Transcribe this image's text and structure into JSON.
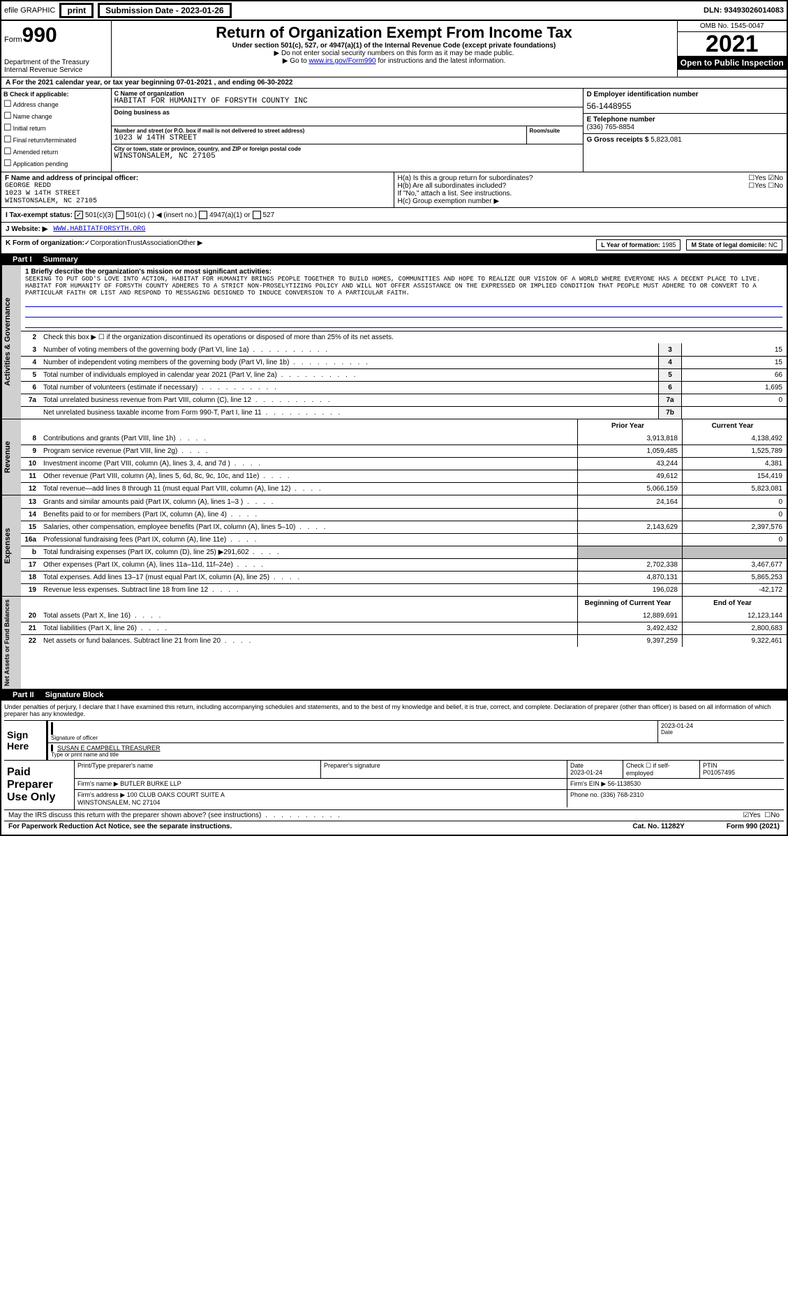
{
  "topbar": {
    "efile": "efile GRAPHIC",
    "print": "print",
    "subdate_lbl": "Submission Date - ",
    "subdate": "2023-01-26",
    "dln_lbl": "DLN: ",
    "dln": "93493026014083"
  },
  "header": {
    "form_word": "Form",
    "form_num": "990",
    "dept": "Department of the Treasury\nInternal Revenue Service",
    "title": "Return of Organization Exempt From Income Tax",
    "sub1": "Under section 501(c), 527, or 4947(a)(1) of the Internal Revenue Code (except private foundations)",
    "sub2": "▶ Do not enter social security numbers on this form as it may be made public.",
    "sub3_pre": "▶ Go to ",
    "sub3_link": "www.irs.gov/Form990",
    "sub3_post": " for instructions and the latest information.",
    "omb": "OMB No. 1545-0047",
    "year": "2021",
    "inspect": "Open to Public Inspection"
  },
  "linea": "A For the 2021 calendar year, or tax year beginning 07-01-2021  , and ending 06-30-2022",
  "blockb": {
    "hdr": "B Check if applicable:",
    "items": [
      "Address change",
      "Name change",
      "Initial return",
      "Final return/terminated",
      "Amended return",
      "Application pending"
    ]
  },
  "blockc": {
    "c_lbl": "C Name of organization",
    "c_val": "HABITAT FOR HUMANITY OF FORSYTH COUNTY INC",
    "dba_lbl": "Doing business as",
    "addr_lbl": "Number and street (or P.O. box if mail is not delivered to street address)",
    "addr_val": "1023 W 14TH STREET",
    "room_lbl": "Room/suite",
    "city_lbl": "City or town, state or province, country, and ZIP or foreign postal code",
    "city_val": "WINSTONSALEM, NC  27105"
  },
  "blockd": {
    "d_lbl": "D Employer identification number",
    "d_val": "56-1448955",
    "e_lbl": "E Telephone number",
    "e_val": "(336) 765-8854",
    "g_lbl": "G Gross receipts $ ",
    "g_val": "5,823,081"
  },
  "linef": {
    "f_lbl": "F  Name and address of principal officer:",
    "f_val": "GEORGE REDD\n1023 W 14TH STREET\nWINSTONSALEM, NC  27105"
  },
  "lineh": {
    "ha": "H(a)  Is this a group return for subordinates?",
    "hb": "H(b)  Are all subordinates included?",
    "hb2": "If \"No,\" attach a list. See instructions.",
    "hc": "H(c)  Group exemption number ▶",
    "yes": "Yes",
    "no": "No"
  },
  "linei": {
    "lbl": "I  Tax-exempt status:",
    "o1": "501(c)(3)",
    "o2": "501(c) (   ) ◀ (insert no.)",
    "o3": "4947(a)(1) or",
    "o4": "527"
  },
  "linej": {
    "lbl": "J  Website: ▶",
    "val": "WWW.HABITATFORSYTH.ORG"
  },
  "linek": {
    "lbl": "K Form of organization:",
    "o1": "Corporation",
    "o2": "Trust",
    "o3": "Association",
    "o4": "Other ▶",
    "l_lbl": "L Year of formation: ",
    "l_val": "1985",
    "m_lbl": "M State of legal domicile: ",
    "m_val": "NC"
  },
  "part1": {
    "hdr_num": "Part I",
    "hdr_txt": "Summary",
    "sec_ag": "Activities & Governance",
    "sec_rev": "Revenue",
    "sec_exp": "Expenses",
    "sec_net": "Net Assets or Fund Balances",
    "l1_lbl": "1  Briefly describe the organization's mission or most significant activities:",
    "l1_val": "SEEKING TO PUT GOD'S LOVE INTO ACTION, HABITAT FOR HUMANITY BRINGS PEOPLE TOGETHER TO BUILD HOMES, COMMUNITIES AND HOPE TO REALIZE OUR VISION OF A WORLD WHERE EVERYONE HAS A DECENT PLACE TO LIVE. HABITAT FOR HUMANITY OF FORSYTH COUNTY ADHERES TO A STRICT NON-PROSELYTIZING POLICY AND WILL NOT OFFER ASSISTANCE ON THE EXPRESSED OR IMPLIED CONDITION THAT PEOPLE MUST ADHERE TO OR CONVERT TO A PARTICULAR FAITH OR LIST AND RESPOND TO MESSAGING DESIGNED TO INDUCE CONVERSION TO A PARTICULAR FAITH.",
    "l2": "Check this box ▶ ☐ if the organization discontinued its operations or disposed of more than 25% of its net assets.",
    "lines_ag": [
      {
        "n": "3",
        "d": "Number of voting members of the governing body (Part VI, line 1a)",
        "box": "3",
        "v": "15"
      },
      {
        "n": "4",
        "d": "Number of independent voting members of the governing body (Part VI, line 1b)",
        "box": "4",
        "v": "15"
      },
      {
        "n": "5",
        "d": "Total number of individuals employed in calendar year 2021 (Part V, line 2a)",
        "box": "5",
        "v": "66"
      },
      {
        "n": "6",
        "d": "Total number of volunteers (estimate if necessary)",
        "box": "6",
        "v": "1,695"
      },
      {
        "n": "7a",
        "d": "Total unrelated business revenue from Part VIII, column (C), line 12",
        "box": "7a",
        "v": "0"
      },
      {
        "n": "",
        "d": "Net unrelated business taxable income from Form 990-T, Part I, line 11",
        "box": "7b",
        "v": ""
      }
    ],
    "col_prior": "Prior Year",
    "col_curr": "Current Year",
    "lines_rev": [
      {
        "n": "8",
        "d": "Contributions and grants (Part VIII, line 1h)",
        "p": "3,913,818",
        "c": "4,138,492"
      },
      {
        "n": "9",
        "d": "Program service revenue (Part VIII, line 2g)",
        "p": "1,059,485",
        "c": "1,525,789"
      },
      {
        "n": "10",
        "d": "Investment income (Part VIII, column (A), lines 3, 4, and 7d )",
        "p": "43,244",
        "c": "4,381"
      },
      {
        "n": "11",
        "d": "Other revenue (Part VIII, column (A), lines 5, 6d, 8c, 9c, 10c, and 11e)",
        "p": "49,612",
        "c": "154,419"
      },
      {
        "n": "12",
        "d": "Total revenue—add lines 8 through 11 (must equal Part VIII, column (A), line 12)",
        "p": "5,066,159",
        "c": "5,823,081"
      }
    ],
    "lines_exp": [
      {
        "n": "13",
        "d": "Grants and similar amounts paid (Part IX, column (A), lines 1–3 )",
        "p": "24,164",
        "c": "0"
      },
      {
        "n": "14",
        "d": "Benefits paid to or for members (Part IX, column (A), line 4)",
        "p": "",
        "c": "0"
      },
      {
        "n": "15",
        "d": "Salaries, other compensation, employee benefits (Part IX, column (A), lines 5–10)",
        "p": "2,143,629",
        "c": "2,397,576"
      },
      {
        "n": "16a",
        "d": "Professional fundraising fees (Part IX, column (A), line 11e)",
        "p": "",
        "c": "0"
      },
      {
        "n": "b",
        "d": "Total fundraising expenses (Part IX, column (D), line 25) ▶291,602",
        "p": "",
        "c": "",
        "gray": true
      },
      {
        "n": "17",
        "d": "Other expenses (Part IX, column (A), lines 11a–11d, 11f–24e)",
        "p": "2,702,338",
        "c": "3,467,677"
      },
      {
        "n": "18",
        "d": "Total expenses. Add lines 13–17 (must equal Part IX, column (A), line 25)",
        "p": "4,870,131",
        "c": "5,865,253"
      },
      {
        "n": "19",
        "d": "Revenue less expenses. Subtract line 18 from line 12",
        "p": "196,028",
        "c": "-42,172"
      }
    ],
    "col_begin": "Beginning of Current Year",
    "col_end": "End of Year",
    "lines_net": [
      {
        "n": "20",
        "d": "Total assets (Part X, line 16)",
        "p": "12,889,691",
        "c": "12,123,144"
      },
      {
        "n": "21",
        "d": "Total liabilities (Part X, line 26)",
        "p": "3,492,432",
        "c": "2,800,683"
      },
      {
        "n": "22",
        "d": "Net assets or fund balances. Subtract line 21 from line 20",
        "p": "9,397,259",
        "c": "9,322,461"
      }
    ]
  },
  "part2": {
    "hdr_num": "Part II",
    "hdr_txt": "Signature Block",
    "decl": "Under penalties of perjury, I declare that I have examined this return, including accompanying schedules and statements, and to the best of my knowledge and belief, it is true, correct, and complete. Declaration of preparer (other than officer) is based on all information of which preparer has any knowledge.",
    "sign_here": "Sign Here",
    "sig_lbl": "Signature of officer",
    "sig_date": "2023-01-24",
    "date_lbl": "Date",
    "name_val": "SUSAN E CAMPBELL  TREASURER",
    "name_lbl": "Type or print name and title",
    "paid_prep": "Paid Preparer Use Only",
    "pp_name_lbl": "Print/Type preparer's name",
    "pp_sig_lbl": "Preparer's signature",
    "pp_date_lbl": "Date",
    "pp_date_val": "2023-01-24",
    "pp_chk": "Check ☐ if self-employed",
    "pp_ptin_lbl": "PTIN",
    "pp_ptin_val": "P01057495",
    "firm_name_lbl": "Firm's name     ▶ ",
    "firm_name_val": "BUTLER BURKE LLP",
    "firm_ein_lbl": "Firm's EIN ▶ ",
    "firm_ein_val": "56-1138530",
    "firm_addr_lbl": "Firm's address ▶ ",
    "firm_addr_val": "100 CLUB OAKS COURT SUITE A\nWINSTONSALEM, NC  27104",
    "firm_phone_lbl": "Phone no. ",
    "firm_phone_val": "(336) 768-2310"
  },
  "footer": {
    "discuss": "May the IRS discuss this return with the preparer shown above? (see instructions)",
    "yes": "Yes",
    "no": "No",
    "paperwork": "For Paperwork Reduction Act Notice, see the separate instructions.",
    "cat": "Cat. No. 11282Y",
    "form": "Form 990 (2021)"
  }
}
